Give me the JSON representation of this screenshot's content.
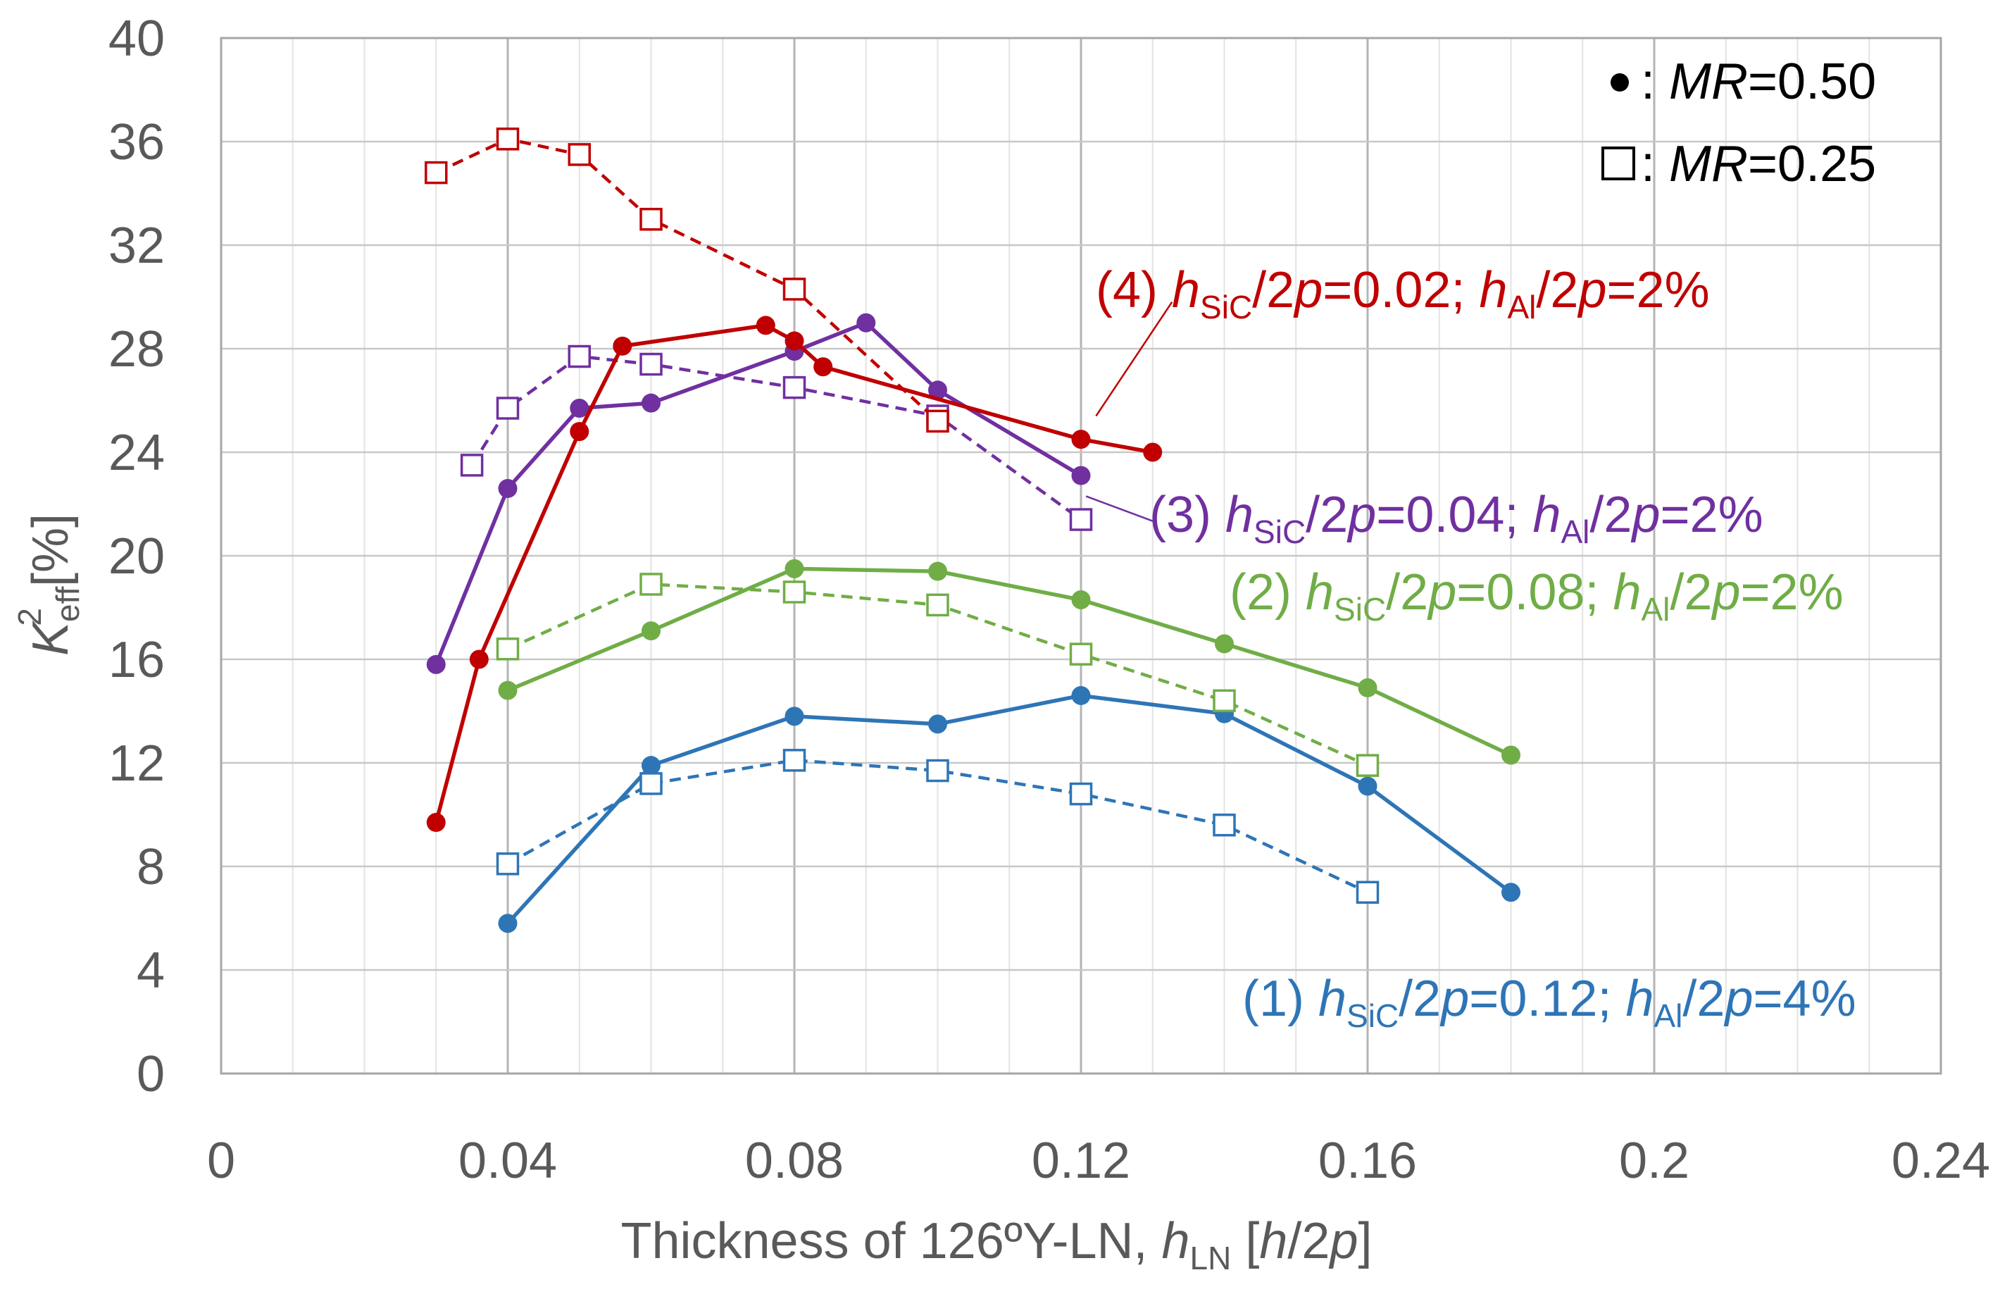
{
  "chart_data": {
    "type": "line",
    "title": "",
    "xlabel": {
      "main": "Thickness of 126ºY-LN, ",
      "var": "h",
      "sub": "LN",
      "unit_open": " [",
      "unit_var1": "h",
      "unit_mid": "/2",
      "unit_var2": "p",
      "unit_close": "]"
    },
    "ylabel": {
      "var": "K",
      "sub": "eff",
      "sup": "2",
      "unit": "[%]"
    },
    "xlim": [
      0,
      0.24
    ],
    "ylim": [
      0,
      40
    ],
    "xticks": [
      0,
      0.04,
      0.08,
      0.12,
      0.16,
      0.2,
      0.24
    ],
    "xtick_labels": [
      "0",
      "0.04",
      "0.08",
      "0.12",
      "0.16",
      "0.2",
      "0.24"
    ],
    "yticks": [
      0,
      4,
      8,
      12,
      16,
      20,
      24,
      28,
      32,
      36,
      40
    ],
    "ytick_labels": [
      "0",
      "4",
      "8",
      "12",
      "16",
      "20",
      "24",
      "28",
      "32",
      "36",
      "40"
    ],
    "minor_x_step": 0.01,
    "grid": true,
    "legend": {
      "position": "top-right",
      "entries": [
        {
          "marker": "circle",
          "symbol": "●",
          "sep": " : ",
          "var": "MR",
          "value": "=0.50"
        },
        {
          "marker": "square",
          "symbol": "□",
          "sep": " : ",
          "var": "MR",
          "value": "=0.25"
        }
      ]
    },
    "series": [
      {
        "name": "(1) solid",
        "group": "1",
        "style": "solid",
        "marker": "circle",
        "color": "#2E75B6",
        "x": [
          0.04,
          0.06,
          0.08,
          0.1,
          0.12,
          0.14,
          0.16,
          0.18
        ],
        "y": [
          5.8,
          11.9,
          13.8,
          13.5,
          14.6,
          13.9,
          11.1,
          7.0
        ]
      },
      {
        "name": "(1) dashed",
        "group": "1",
        "style": "dashed",
        "marker": "square",
        "color": "#2E75B6",
        "x": [
          0.04,
          0.06,
          0.08,
          0.1,
          0.12,
          0.14,
          0.16
        ],
        "y": [
          8.1,
          11.2,
          12.1,
          11.7,
          10.8,
          9.6,
          7.0
        ]
      },
      {
        "name": "(2) solid",
        "group": "2",
        "style": "solid",
        "marker": "circle",
        "color": "#70AD47",
        "x": [
          0.04,
          0.06,
          0.08,
          0.1,
          0.12,
          0.14,
          0.16,
          0.18
        ],
        "y": [
          14.8,
          17.1,
          19.5,
          19.4,
          18.3,
          16.6,
          14.9,
          12.3
        ]
      },
      {
        "name": "(2) dashed",
        "group": "2",
        "style": "dashed",
        "marker": "square",
        "color": "#70AD47",
        "x": [
          0.04,
          0.06,
          0.08,
          0.1,
          0.12,
          0.14,
          0.16
        ],
        "y": [
          16.4,
          18.9,
          18.6,
          18.1,
          16.2,
          14.4,
          11.9
        ]
      },
      {
        "name": "(3) solid",
        "group": "3",
        "style": "solid",
        "marker": "circle",
        "color": "#7030A0",
        "x": [
          0.03,
          0.04,
          0.05,
          0.06,
          0.08,
          0.09,
          0.1,
          0.12
        ],
        "y": [
          15.8,
          22.6,
          25.7,
          25.9,
          27.9,
          29.0,
          26.4,
          23.1
        ]
      },
      {
        "name": "(3) dashed",
        "group": "3",
        "style": "dashed",
        "marker": "square",
        "color": "#7030A0",
        "x": [
          0.035,
          0.04,
          0.05,
          0.06,
          0.08,
          0.1,
          0.12
        ],
        "y": [
          23.5,
          25.7,
          27.7,
          27.4,
          26.5,
          25.4,
          21.4
        ]
      },
      {
        "name": "(4) solid",
        "group": "4",
        "style": "solid",
        "marker": "circle",
        "color": "#C00000",
        "x": [
          0.03,
          0.036,
          0.05,
          0.056,
          0.076,
          0.08,
          0.084,
          0.12,
          0.13
        ],
        "y": [
          9.7,
          16.0,
          24.8,
          28.1,
          28.9,
          28.3,
          27.3,
          24.5,
          24.0
        ]
      },
      {
        "name": "(4) dashed",
        "group": "4",
        "style": "dashed",
        "marker": "square",
        "color": "#C00000",
        "x": [
          0.03,
          0.04,
          0.05,
          0.06,
          0.08,
          0.1
        ],
        "y": [
          34.8,
          36.1,
          35.5,
          33.0,
          30.3,
          25.2
        ]
      }
    ],
    "annotations": [
      {
        "id": "4",
        "color": "#C00000",
        "prefix": "(4) ",
        "v1": "h",
        "s1": "SiC",
        "t1": "/2",
        "v2": "p",
        "t2": "=0.02; ",
        "v3": "h",
        "s3": "Al",
        "t3": "/2",
        "v4": "p",
        "t4": "=2%"
      },
      {
        "id": "3",
        "color": "#7030A0",
        "prefix": "(3) ",
        "v1": "h",
        "s1": "SiC",
        "t1": "/2",
        "v2": "p",
        "t2": "=0.04; ",
        "v3": "h",
        "s3": "Al",
        "t3": "/2",
        "v4": "p",
        "t4": "=2%"
      },
      {
        "id": "2",
        "color": "#70AD47",
        "prefix": "(2) ",
        "v1": "h",
        "s1": "SiC",
        "t1": "/2",
        "v2": "p",
        "t2": "=0.08; ",
        "v3": "h",
        "s3": "Al",
        "t3": "/2",
        "v4": "p",
        "t4": "=2%"
      },
      {
        "id": "1",
        "color": "#2E75B6",
        "prefix": "(1) ",
        "v1": "h",
        "s1": "SiC",
        "t1": "/2",
        "v2": "p",
        "t2": "=0.12; ",
        "v3": "h",
        "s3": "Al",
        "t3": "/2",
        "v4": "p",
        "t4": "=4%"
      }
    ]
  }
}
